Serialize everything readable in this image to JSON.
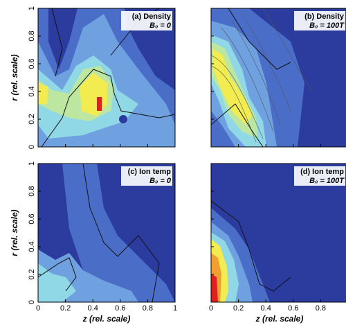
{
  "chart_data": [
    {
      "type": "contour",
      "title": "(a) Density",
      "subtitle": "B₀ = 0",
      "ylabel": "r (rel. scale)",
      "xlim": [
        0,
        1
      ],
      "ylim": [
        0,
        1
      ],
      "xticks": [
        0,
        0.2,
        0.4,
        0.6,
        0.8,
        1
      ],
      "yticks": [
        0,
        0.2,
        0.4,
        0.6,
        0.8,
        1
      ]
    },
    {
      "type": "contour",
      "title": "(b) Density",
      "subtitle": "B₀ = 100T",
      "xlim": [
        0,
        1
      ],
      "ylim": [
        0,
        1
      ],
      "xticks": [
        0,
        0.2,
        0.4,
        0.6,
        0.8,
        1
      ],
      "yticks": [
        0,
        0.2,
        0.4,
        0.6,
        0.8,
        1
      ]
    },
    {
      "type": "contour",
      "title": "(c) Ion temp",
      "subtitle": "B₀ = 0",
      "ylabel": "r (rel. scale)",
      "xlabel": "z (rel. scale)",
      "xlim": [
        0,
        1
      ],
      "ylim": [
        0,
        1
      ],
      "xticks": [
        0,
        0.2,
        0.4,
        0.6,
        0.8,
        1
      ],
      "yticks": [
        0,
        0.2,
        0.4,
        0.6,
        0.8,
        1
      ]
    },
    {
      "type": "contour",
      "title": "(d) Ion temp",
      "subtitle": "B₀ = 100T",
      "xlabel": "z (rel. scale)",
      "xlim": [
        0,
        1
      ],
      "ylim": [
        0,
        1
      ],
      "xticks": [
        0,
        0.2,
        0.4,
        0.6,
        0.8,
        1
      ],
      "yticks": [
        0,
        0.2,
        0.4,
        0.6,
        0.8,
        1
      ]
    }
  ]
}
